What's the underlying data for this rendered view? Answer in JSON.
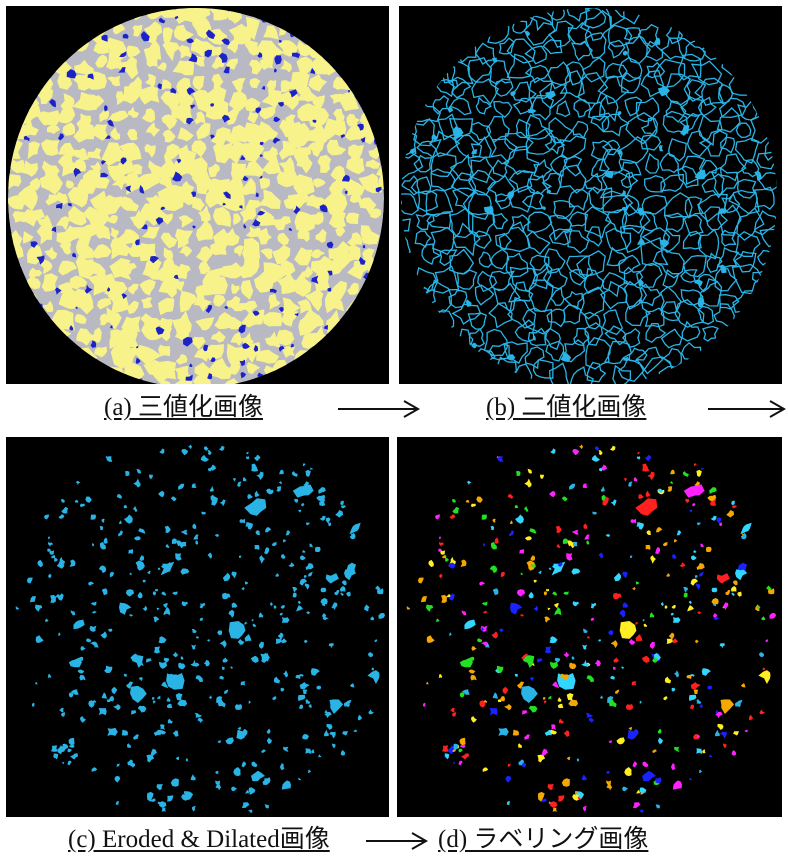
{
  "captions": {
    "a": "(a) 三値化画像",
    "b": "(b) 二値化画像",
    "c": "(c) Eroded & Dilated画像",
    "d": "(d) ラベリング画像"
  },
  "colors": {
    "background": "#000000",
    "grain": "#f7f28a",
    "matrix": "#b9b9c4",
    "pore_blue": "#1a22c8",
    "binary_cyan": "#2ab4e6",
    "label_palette": [
      "#f5a800",
      "#1a22ff",
      "#22e022",
      "#ff22ff",
      "#33d6ff",
      "#ff2020",
      "#ffee22",
      "#2ab4e6"
    ]
  },
  "icons": [
    "right-arrow-icon"
  ]
}
